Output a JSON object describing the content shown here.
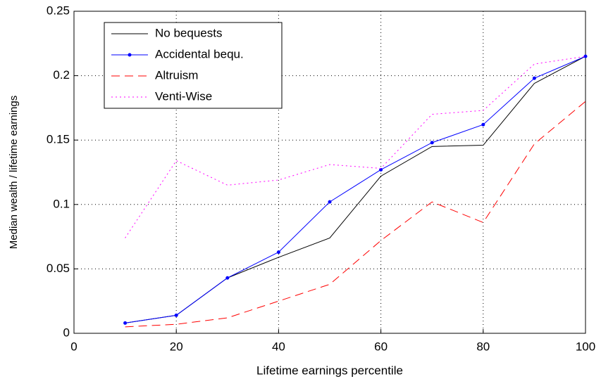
{
  "chart_data": {
    "type": "line",
    "xlabel": "Lifetime earnings percentile",
    "ylabel": "Median wealth / lifetime earnings",
    "x": [
      10,
      20,
      30,
      40,
      50,
      60,
      70,
      80,
      90,
      100
    ],
    "series": [
      {
        "name": "No bequests",
        "color": "#000000",
        "style": "solid",
        "marker": false,
        "values": [
          0.008,
          0.014,
          0.043,
          0.059,
          0.074,
          0.122,
          0.145,
          0.146,
          0.194,
          0.215
        ]
      },
      {
        "name": "Accidental bequ.",
        "color": "#0000ff",
        "style": "solid",
        "marker": true,
        "values": [
          0.008,
          0.014,
          0.043,
          0.063,
          0.102,
          0.127,
          0.148,
          0.162,
          0.198,
          0.215
        ]
      },
      {
        "name": "Altruism",
        "color": "#ff0000",
        "style": "dashed",
        "marker": false,
        "values": [
          0.005,
          0.007,
          0.012,
          0.025,
          0.038,
          0.072,
          0.102,
          0.086,
          0.147,
          0.18
        ]
      },
      {
        "name": "Venti-Wise",
        "color": "#ff00ff",
        "style": "dotted",
        "marker": false,
        "values": [
          0.074,
          0.134,
          0.115,
          0.119,
          0.131,
          0.128,
          0.17,
          0.173,
          0.209,
          0.215
        ]
      }
    ],
    "xlim": [
      0,
      100
    ],
    "xticks": [
      0,
      20,
      40,
      60,
      80,
      100
    ],
    "ylim": [
      0,
      0.25
    ],
    "yticks": [
      0,
      0.05,
      0.1,
      0.15,
      0.2,
      0.25
    ],
    "grid": true,
    "legend": "upper-left"
  }
}
